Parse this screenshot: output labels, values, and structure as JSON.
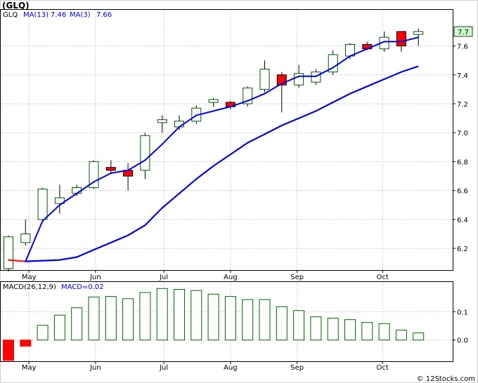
{
  "chart_data": [
    {
      "type": "candlestick",
      "title": "(GLQ)",
      "legend": [
        {
          "label": "GLQ",
          "color": "#000000"
        },
        {
          "label": "MA(13)",
          "value": "7.46",
          "color": "#0000cc"
        },
        {
          "label": "MA(3)",
          "value": "7.66",
          "color": "#0000cc"
        }
      ],
      "last_price_label": "7.7",
      "ylim": [
        6.05,
        7.85
      ],
      "y_ticks": [
        6.2,
        6.4,
        6.6,
        6.8,
        7.0,
        7.2,
        7.4,
        7.6
      ],
      "y_tick_labels": [
        "6.2",
        "6.4",
        "6.6",
        "6.8",
        "7.0",
        "7.2",
        "7.4",
        "7.6"
      ],
      "x_labels": [
        "May",
        "Jun",
        "Jul",
        "Aug",
        "Sep",
        "Oct"
      ],
      "x_label_positions": [
        1.2,
        5.1,
        9.1,
        13.0,
        16.9,
        21.9
      ],
      "up_color": "#ffffff",
      "down_color": "#ff0000",
      "candles": [
        {
          "x": 0,
          "open": 6.06,
          "high": 6.29,
          "low": 6.04,
          "close": 6.28
        },
        {
          "x": 1,
          "open": 6.24,
          "high": 6.4,
          "low": 6.22,
          "close": 6.3
        },
        {
          "x": 2,
          "open": 6.4,
          "high": 6.62,
          "low": 6.38,
          "close": 6.61
        },
        {
          "x": 3,
          "open": 6.51,
          "high": 6.64,
          "low": 6.44,
          "close": 6.55
        },
        {
          "x": 4,
          "open": 6.58,
          "high": 6.64,
          "low": 6.56,
          "close": 6.62
        },
        {
          "x": 5,
          "open": 6.62,
          "high": 6.81,
          "low": 6.61,
          "close": 6.8
        },
        {
          "x": 6,
          "open": 6.76,
          "high": 6.81,
          "low": 6.72,
          "close": 6.74
        },
        {
          "x": 7,
          "open": 6.74,
          "high": 6.79,
          "low": 6.6,
          "close": 6.7
        },
        {
          "x": 8,
          "open": 6.74,
          "high": 7.0,
          "low": 6.68,
          "close": 6.98
        },
        {
          "x": 9,
          "open": 7.07,
          "high": 7.12,
          "low": 7.0,
          "close": 7.09
        },
        {
          "x": 10,
          "open": 7.04,
          "high": 7.12,
          "low": 7.02,
          "close": 7.08
        },
        {
          "x": 11,
          "open": 7.08,
          "high": 7.19,
          "low": 7.06,
          "close": 7.17
        },
        {
          "x": 12,
          "open": 7.21,
          "high": 7.24,
          "low": 7.18,
          "close": 7.23
        },
        {
          "x": 13,
          "open": 7.21,
          "high": 7.22,
          "low": 7.16,
          "close": 7.18
        },
        {
          "x": 14,
          "open": 7.2,
          "high": 7.32,
          "low": 7.18,
          "close": 7.31
        },
        {
          "x": 15,
          "open": 7.3,
          "high": 7.5,
          "low": 7.28,
          "close": 7.44
        },
        {
          "x": 16,
          "open": 7.4,
          "high": 7.42,
          "low": 7.14,
          "close": 7.33
        },
        {
          "x": 17,
          "open": 7.33,
          "high": 7.47,
          "low": 7.31,
          "close": 7.41
        },
        {
          "x": 18,
          "open": 7.35,
          "high": 7.44,
          "low": 7.33,
          "close": 7.42
        },
        {
          "x": 19,
          "open": 7.42,
          "high": 7.57,
          "low": 7.4,
          "close": 7.54
        },
        {
          "x": 20,
          "open": 7.53,
          "high": 7.62,
          "low": 7.51,
          "close": 7.61
        },
        {
          "x": 21,
          "open": 7.61,
          "high": 7.63,
          "low": 7.57,
          "close": 7.58
        },
        {
          "x": 22,
          "open": 7.58,
          "high": 7.7,
          "low": 7.56,
          "close": 7.66
        },
        {
          "x": 23,
          "open": 7.7,
          "high": 7.7,
          "low": 7.56,
          "close": 7.6
        },
        {
          "x": 24,
          "open": 7.68,
          "high": 7.72,
          "low": 7.6,
          "close": 7.7
        }
      ],
      "series": [
        {
          "name": "MA(13)",
          "color": "#0000dd",
          "x": [
            1,
            2,
            3,
            4,
            5,
            6,
            7,
            8,
            9,
            10,
            11,
            12,
            13,
            14,
            15,
            16,
            17,
            18,
            19,
            20,
            21,
            22,
            23,
            24
          ],
          "values": [
            6.11,
            6.115,
            6.12,
            6.14,
            6.19,
            6.24,
            6.29,
            6.36,
            6.48,
            6.58,
            6.68,
            6.77,
            6.85,
            6.93,
            6.99,
            7.05,
            7.1,
            7.15,
            7.21,
            7.27,
            7.32,
            7.37,
            7.42,
            7.46
          ]
        },
        {
          "name": "MA(3)",
          "color": "#0000dd",
          "down_color": "#ff0000",
          "x": [
            0,
            1,
            2,
            3,
            4,
            5,
            6,
            7,
            8,
            9,
            10,
            11,
            12,
            13,
            14,
            15,
            16,
            17,
            18,
            19,
            20,
            21,
            22,
            23,
            24
          ],
          "values": [
            6.12,
            6.11,
            6.39,
            6.5,
            6.58,
            6.66,
            6.72,
            6.74,
            6.81,
            6.92,
            7.04,
            7.12,
            7.15,
            7.18,
            7.22,
            7.27,
            7.34,
            7.39,
            7.39,
            7.45,
            7.53,
            7.58,
            7.63,
            7.63,
            7.66
          ]
        }
      ]
    },
    {
      "type": "bar",
      "title": "MACD(26,12,9)",
      "legend": [
        {
          "label": "MACD(26,12,9)",
          "color": "#000000"
        },
        {
          "label": "MACD=0.02",
          "color": "#0000cc"
        }
      ],
      "ylim": [
        -0.075,
        0.205
      ],
      "y_ticks": [
        0.0,
        0.1
      ],
      "y_tick_labels": [
        "0.0",
        "0.1"
      ],
      "x_labels": [
        "May",
        "Jun",
        "Jul",
        "Aug",
        "Sep",
        "Oct"
      ],
      "x_label_positions": [
        1.2,
        5.1,
        9.1,
        13.0,
        16.9,
        21.9
      ],
      "pos_color": "#006600",
      "neg_color": "#ff0000",
      "x": [
        0,
        1,
        2,
        3,
        4,
        5,
        6,
        7,
        8,
        9,
        10,
        11,
        12,
        13,
        14,
        15,
        16,
        17,
        18,
        19,
        20,
        21,
        22,
        23,
        24
      ],
      "values": [
        -0.072,
        -0.022,
        0.052,
        0.088,
        0.114,
        0.152,
        0.154,
        0.146,
        0.168,
        0.182,
        0.179,
        0.175,
        0.162,
        0.154,
        0.143,
        0.143,
        0.118,
        0.104,
        0.082,
        0.077,
        0.072,
        0.062,
        0.058,
        0.035,
        0.025
      ]
    }
  ],
  "footer": {
    "copyright": "© 12Stocks.com"
  }
}
